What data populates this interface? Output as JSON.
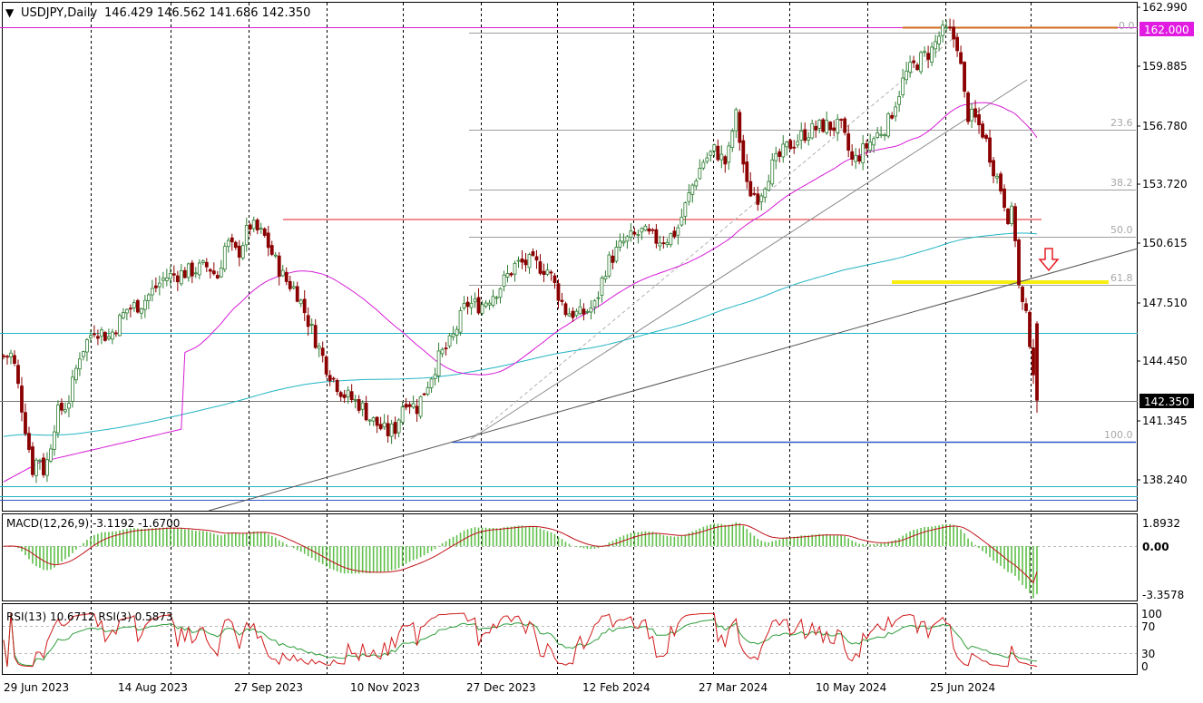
{
  "header": {
    "menu_glyph": "▼",
    "symbol_tf": "USDJPY,Daily",
    "ohlc": "146.429 146.562 141.686 142.350"
  },
  "price_axis": {
    "ticks": [
      "162.990",
      "159.885",
      "156.780",
      "153.720",
      "150.615",
      "147.510",
      "144.450",
      "141.345",
      "138.240"
    ],
    "current_price_label": "142.350",
    "level_label": "162.000"
  },
  "macd_panel": {
    "title": "MACD(12,26,9) -3.1192 -1.6700",
    "ticks": [
      "1.8932",
      "0.00",
      "-3.3578"
    ]
  },
  "rsi_panel": {
    "title": "RSI(13) 10.6712  RSI(3) 0.5873",
    "ticks": [
      "100",
      "70",
      "30",
      "0"
    ]
  },
  "time_axis": {
    "labels": [
      "29 Jun 2023",
      "14 Aug 2023",
      "27 Sep 2023",
      "10 Nov 2023",
      "27 Dec 2023",
      "12 Feb 2024",
      "27 Mar 2024",
      "10 May 2024",
      "25 Jun 2024"
    ]
  },
  "fib_labels": [
    "0.0",
    "23.6",
    "38.2",
    "50.0",
    "61.8",
    "100.0"
  ],
  "colors": {
    "bull": "#2e7d32",
    "bear": "#8b0000",
    "ma_fast": "#d61cd6",
    "ma_slow": "#22b4c4",
    "resistance": "#e51c23",
    "support": "#3057c9",
    "highlight": "#f6ee12",
    "macd_hist": "#5fbf4a",
    "macd_signal": "#c0141a",
    "rsi13": "#2e9d3a",
    "rsi3": "#d11a1a"
  },
  "chart_data": [
    {
      "type": "candlestick",
      "title": "USDJPY,Daily",
      "x_start": "29 Jun 2023",
      "x_end": "5 Aug 2024",
      "ylim": [
        136.8,
        163.3
      ],
      "key_points": [
        {
          "date": "29 Jun 2023",
          "close": 144.7
        },
        {
          "date": "28 Jul 2023",
          "low": 138.0
        },
        {
          "date": "8 Nov 2023",
          "high": 151.9
        },
        {
          "date": "28 Dec 2023",
          "low": 140.3
        },
        {
          "date": "29 Apr 2024",
          "high": 160.2
        },
        {
          "date": "3 Jul 2024",
          "high": 162.0
        },
        {
          "date": "2 Aug 2024",
          "open": 146.429,
          "high": 146.562,
          "low": 141.686,
          "close": 142.35
        }
      ],
      "horizontal_levels": [
        162.0,
        152.0,
        145.7,
        142.35,
        140.3
      ],
      "fibonacci": {
        "0.0": 162.0,
        "23.6": 156.9,
        "38.2": 153.7,
        "50.0": 151.15,
        "61.8": 148.4,
        "100.0": 140.3
      },
      "yellow_zone": 148.4
    },
    {
      "type": "bar",
      "title": "MACD(12,26,9) -3.1192 -1.6700",
      "ylim": [
        -3.3578,
        1.8932
      ],
      "macd": -3.1192,
      "signal": -1.67
    },
    {
      "type": "line",
      "title": "RSI(13) 10.6712  RSI(3) 0.5873",
      "ylim": [
        0,
        100
      ],
      "levels": [
        70,
        30
      ],
      "series": [
        {
          "name": "RSI(13)",
          "last": 10.6712
        },
        {
          "name": "RSI(3)",
          "last": 0.5873
        }
      ]
    }
  ]
}
